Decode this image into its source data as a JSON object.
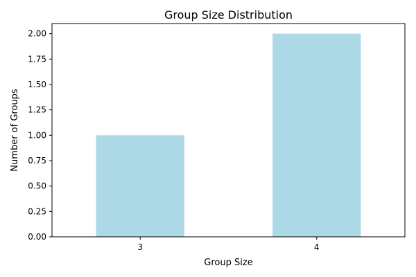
{
  "chart_data": {
    "type": "bar",
    "title": "Group Size Distribution",
    "xlabel": "Group Size",
    "ylabel": "Number of Groups",
    "categories": [
      "3",
      "4"
    ],
    "values": [
      1,
      2
    ],
    "ylim": [
      0,
      2.1
    ],
    "yticks": [
      "0.00",
      "0.25",
      "0.50",
      "0.75",
      "1.00",
      "1.25",
      "1.50",
      "1.75",
      "2.00"
    ],
    "bar_color": "#add8e6",
    "grid": false,
    "legend": "none"
  }
}
